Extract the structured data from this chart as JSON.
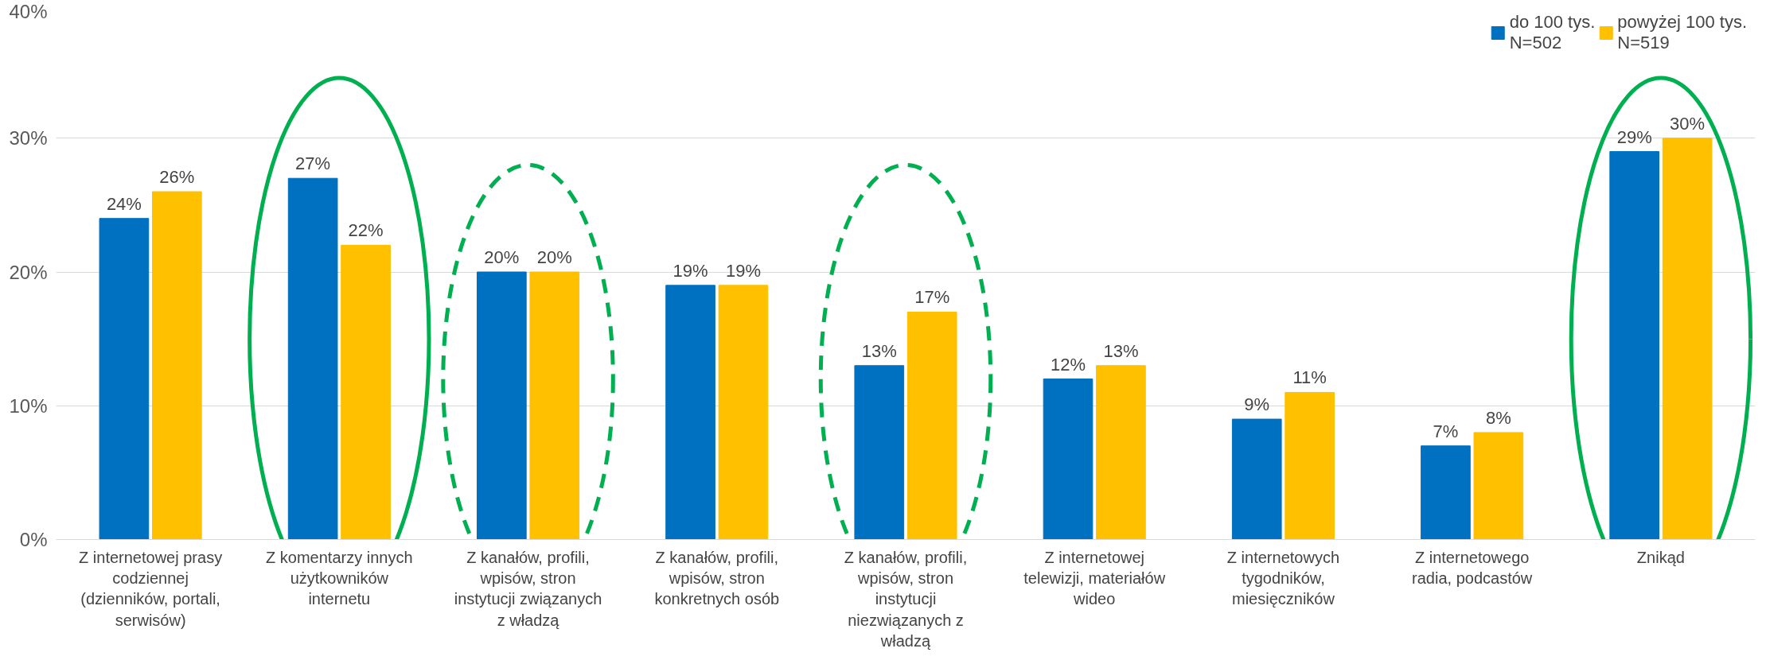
{
  "chart_data": {
    "type": "bar",
    "categories": [
      "Z internetowej prasy codziennej (dzienników, portali, serwisów)",
      "Z komentarzy innych użytkowników internetu",
      "Z kanałów, profili, wpisów, stron instytucji związanych z władzą",
      "Z kanałów, profili, wpisów, stron konkretnych osób",
      "Z kanałów, profili, wpisów, stron instytucji niezwiązanych z władzą",
      "Z internetowej telewizji, materiałów wideo",
      "Z internetowych tygodników, miesięczników",
      "Z internetowego radia, podcastów",
      "Znikąd"
    ],
    "series": [
      {
        "name": "do 100 tys.\nN=502",
        "color": "#0070c0",
        "values": [
          24,
          27,
          20,
          19,
          13,
          12,
          9,
          7,
          29
        ],
        "value_labels": [
          "24%",
          "27%",
          "20%",
          "19%",
          "13%",
          "12%",
          "9%",
          "7%",
          "29%"
        ]
      },
      {
        "name": "powyżej 100 tys.\nN=519",
        "color": "#ffc000",
        "values": [
          26,
          22,
          20,
          19,
          17,
          13,
          11,
          8,
          30
        ],
        "value_labels": [
          "26%",
          "22%",
          "20%",
          "19%",
          "17%",
          "13%",
          "11%",
          "8%",
          "30%"
        ]
      }
    ],
    "ylim": [
      0,
      40
    ],
    "yticks": [
      {
        "value": 0,
        "label": "0%"
      },
      {
        "value": 10,
        "label": "10%"
      },
      {
        "value": 20,
        "label": "20%"
      },
      {
        "value": 30,
        "label": "30%"
      },
      {
        "value": 40,
        "label": "40%"
      }
    ],
    "grid": "y",
    "legend": "top right"
  }
}
